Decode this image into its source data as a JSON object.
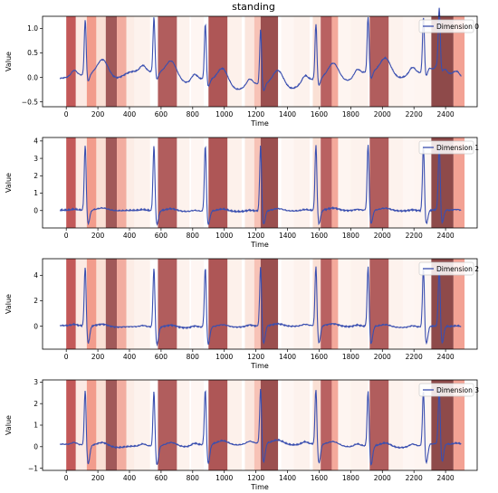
{
  "chart_data": {
    "type": "line",
    "title": "standing",
    "line_color": "#3a4fb0",
    "segments": [
      {
        "start": 0,
        "end": 60,
        "color": "#b83c3c",
        "opacity": 0.85
      },
      {
        "start": 60,
        "end": 130,
        "color": "#f4b9a4",
        "opacity": 0.3
      },
      {
        "start": 130,
        "end": 190,
        "color": "#ee7b66",
        "opacity": 0.75
      },
      {
        "start": 190,
        "end": 250,
        "color": "#f6c7b3",
        "opacity": 0.55
      },
      {
        "start": 250,
        "end": 320,
        "color": "#8a3030",
        "opacity": 0.8
      },
      {
        "start": 320,
        "end": 380,
        "color": "#ec8a78",
        "opacity": 0.7
      },
      {
        "start": 380,
        "end": 430,
        "color": "#f9d9cc",
        "opacity": 0.5
      },
      {
        "start": 430,
        "end": 530,
        "color": "#fbe3d8",
        "opacity": 0.45
      },
      {
        "start": 580,
        "end": 700,
        "color": "#9e3434",
        "opacity": 0.8
      },
      {
        "start": 700,
        "end": 780,
        "color": "#fbe3d8",
        "opacity": 0.45
      },
      {
        "start": 790,
        "end": 870,
        "color": "#fde9e0",
        "opacity": 0.4
      },
      {
        "start": 900,
        "end": 1020,
        "color": "#a03838",
        "opacity": 0.85
      },
      {
        "start": 1020,
        "end": 1110,
        "color": "#fbe3d8",
        "opacity": 0.5
      },
      {
        "start": 1130,
        "end": 1190,
        "color": "#f7cebd",
        "opacity": 0.5
      },
      {
        "start": 1190,
        "end": 1230,
        "color": "#f19a86",
        "opacity": 0.6
      },
      {
        "start": 1230,
        "end": 1340,
        "color": "#8a3030",
        "opacity": 0.85
      },
      {
        "start": 1360,
        "end": 1440,
        "color": "#fde9e0",
        "opacity": 0.4
      },
      {
        "start": 1440,
        "end": 1540,
        "color": "#fbe3d8",
        "opacity": 0.45
      },
      {
        "start": 1560,
        "end": 1610,
        "color": "#f6c7b3",
        "opacity": 0.55
      },
      {
        "start": 1610,
        "end": 1680,
        "color": "#a83a3a",
        "opacity": 0.8
      },
      {
        "start": 1680,
        "end": 1720,
        "color": "#ee7b66",
        "opacity": 0.65
      },
      {
        "start": 1720,
        "end": 1800,
        "color": "#fde9e0",
        "opacity": 0.45
      },
      {
        "start": 1800,
        "end": 1910,
        "color": "#fbe3d8",
        "opacity": 0.45
      },
      {
        "start": 1920,
        "end": 2040,
        "color": "#9e3434",
        "opacity": 0.8
      },
      {
        "start": 2040,
        "end": 2130,
        "color": "#fbe3d8",
        "opacity": 0.45
      },
      {
        "start": 2130,
        "end": 2200,
        "color": "#fde9e0",
        "opacity": 0.4
      },
      {
        "start": 2200,
        "end": 2310,
        "color": "#fbe3d8",
        "opacity": 0.35
      },
      {
        "start": 2310,
        "end": 2450,
        "color": "#7a2a2a",
        "opacity": 0.85
      },
      {
        "start": 2450,
        "end": 2520,
        "color": "#ee7b66",
        "opacity": 0.7
      }
    ],
    "beats": [
      120,
      555,
      880,
      1230,
      1580,
      1910,
      2260,
      2360
    ],
    "panels": [
      {
        "legend": "Dimension 0",
        "ylabel": "Value",
        "xlabel": "Time",
        "xlim": [
          -150,
          2600
        ],
        "ylim": [
          -0.6,
          1.25
        ],
        "xticks": [
          0,
          200,
          400,
          600,
          800,
          1000,
          1200,
          1400,
          1600,
          1800,
          2000,
          2200,
          2400
        ],
        "yticks": [
          -0.5,
          0.0,
          0.5,
          1.0
        ],
        "ytick_labels": [
          "−0.5",
          "0.0",
          "0.5",
          "1.0"
        ],
        "baseline": 0.0,
        "r_peak": 1.15,
        "p_amp": 0.12,
        "t_amp": 0.28,
        "s_min": -0.15,
        "wander": 0.22
      },
      {
        "legend": "Dimension 1",
        "ylabel": "Value",
        "xlabel": "Time",
        "xlim": [
          -150,
          2600
        ],
        "ylim": [
          -1.0,
          4.2
        ],
        "xticks": [
          0,
          200,
          400,
          600,
          800,
          1000,
          1200,
          1400,
          1600,
          1800,
          2000,
          2200,
          2400
        ],
        "yticks": [
          0,
          1,
          2,
          3,
          4
        ],
        "ytick_labels": [
          "0",
          "1",
          "2",
          "3",
          "4"
        ],
        "baseline": 0.0,
        "r_peak": 3.9,
        "p_amp": 0.05,
        "t_amp": 0.12,
        "s_min": -0.8,
        "wander": 0.05
      },
      {
        "legend": "Dimension 2",
        "ylabel": "Value",
        "xlabel": "Time",
        "xlim": [
          -150,
          2600
        ],
        "ylim": [
          -1.8,
          5.3
        ],
        "xticks": [
          0,
          200,
          400,
          600,
          800,
          1000,
          1200,
          1400,
          1600,
          1800,
          2000,
          2200,
          2400
        ],
        "yticks": [
          0,
          2,
          4
        ],
        "ytick_labels": [
          "0",
          "2",
          "4"
        ],
        "baseline": 0.0,
        "r_peak": 4.9,
        "p_amp": 0.1,
        "t_amp": 0.15,
        "s_min": -1.4,
        "wander": 0.1
      },
      {
        "legend": "Dimension 3",
        "ylabel": "Value",
        "xlabel": "Time",
        "xlim": [
          -150,
          2600
        ],
        "ylim": [
          -1.1,
          3.1
        ],
        "xticks": [
          0,
          200,
          400,
          600,
          800,
          1000,
          1200,
          1400,
          1600,
          1800,
          2000,
          2200,
          2400
        ],
        "yticks": [
          -1,
          0,
          1,
          2,
          3
        ],
        "ytick_labels": [
          "−1",
          "0",
          "1",
          "2",
          "3"
        ],
        "baseline": 0.1,
        "r_peak": 2.7,
        "p_amp": 0.1,
        "t_amp": 0.15,
        "s_min": -0.9,
        "wander": 0.12
      }
    ]
  }
}
